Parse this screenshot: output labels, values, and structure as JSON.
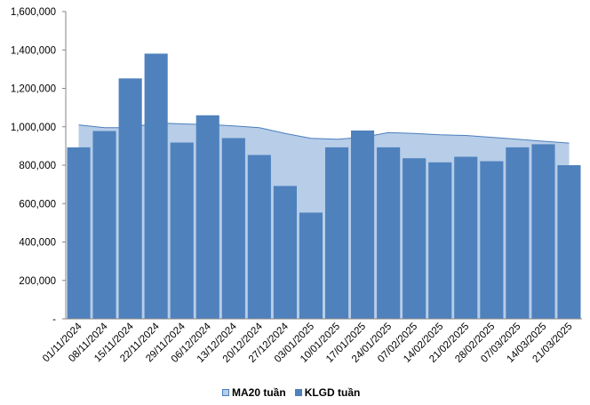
{
  "chart_data": {
    "type": "bar",
    "title": "",
    "xlabel": "",
    "ylabel": "",
    "ylim": [
      0,
      1600000
    ],
    "y_ticks": [
      "-",
      "200,000",
      "400,000",
      "600,000",
      "800,000",
      "1,000,000",
      "1,200,000",
      "1,400,000",
      "1,600,000"
    ],
    "categories": [
      "01/11/2024",
      "08/11/2024",
      "15/11/2024",
      "22/11/2024",
      "29/11/2024",
      "06/12/2024",
      "13/12/2024",
      "20/12/2024",
      "27/12/2024",
      "03/01/2025",
      "10/01/2025",
      "17/01/2025",
      "24/01/2025",
      "07/02/2025",
      "14/02/2025",
      "21/02/2025",
      "28/02/2025",
      "07/03/2025",
      "14/03/2025",
      "21/03/2025"
    ],
    "grid": false,
    "legend_position": "bottom",
    "series": [
      {
        "name": "MA20 tuần",
        "type": "area",
        "color": "#b7cde8",
        "line_color": "#4a7ebb",
        "values": [
          1010000,
          995000,
          995000,
          1020000,
          1015000,
          1012000,
          1005000,
          995000,
          965000,
          940000,
          935000,
          945000,
          970000,
          965000,
          958000,
          955000,
          945000,
          935000,
          925000,
          915000
        ]
      },
      {
        "name": "KLGD tuần",
        "type": "bar",
        "color": "#4f81bd",
        "values": [
          893000,
          978000,
          1252000,
          1381000,
          918000,
          1060000,
          941000,
          853000,
          692000,
          553000,
          893000,
          981000,
          893000,
          836000,
          815000,
          844000,
          821000,
          893000,
          909000,
          800000
        ]
      }
    ]
  }
}
